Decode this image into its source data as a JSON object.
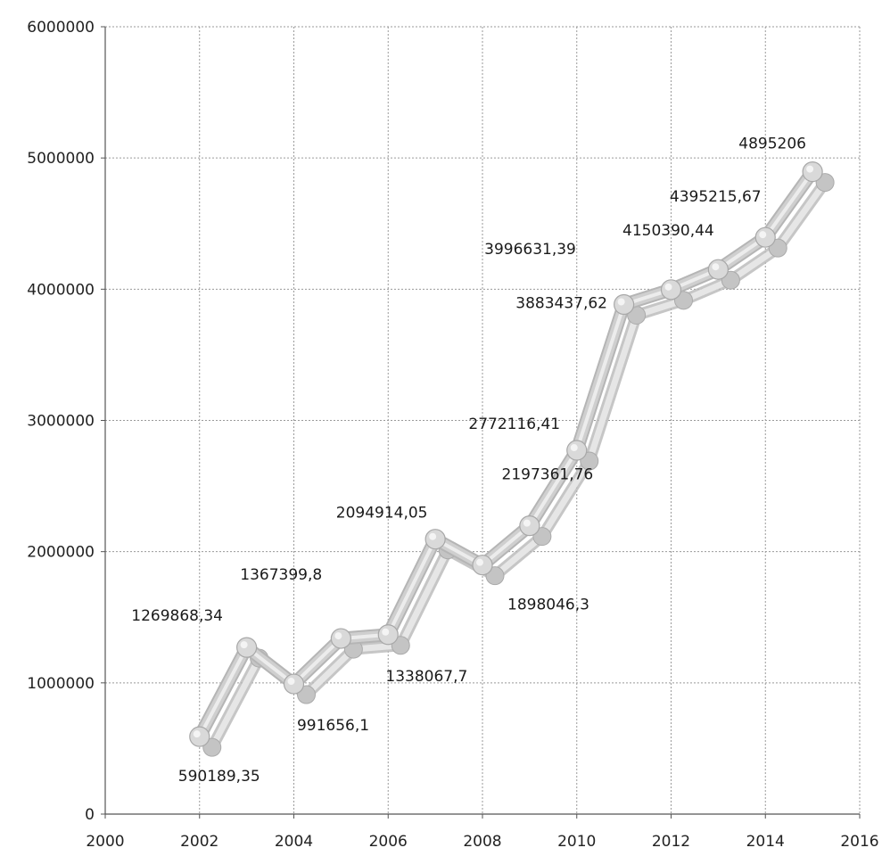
{
  "chart_data": {
    "type": "line",
    "title": "",
    "xlabel": "",
    "ylabel": "",
    "xlim": [
      2000,
      2016
    ],
    "ylim": [
      0,
      6000000
    ],
    "x_ticks": [
      2000,
      2002,
      2004,
      2006,
      2008,
      2010,
      2012,
      2014,
      2016
    ],
    "y_ticks": [
      0,
      1000000,
      2000000,
      3000000,
      4000000,
      5000000,
      6000000
    ],
    "grid": true,
    "legend": "none",
    "style": "3D tube line with spherical markers",
    "colors": {
      "line": "#cfcfcf",
      "marker": "#d9d9d9",
      "shadow": "#b8b8b8",
      "grid": "#9a9a9a"
    },
    "series": [
      {
        "x": [
          2002,
          2003,
          2004,
          2005,
          2006,
          2007,
          2008,
          2009,
          2010,
          2011,
          2012,
          2013,
          2014,
          2015
        ],
        "values": [
          590189.35,
          1269868.34,
          991656.1,
          1338067.7,
          1367399.8,
          2094914.05,
          1898046.3,
          2197361.76,
          2772116.41,
          3883437.62,
          3996631.39,
          4150390.44,
          4395215.67,
          4895206
        ],
        "labels": [
          "590189,35",
          "1269868,34",
          "991656,1",
          "1338067,7",
          "1367399,8",
          "2094914,05",
          "1898046,3",
          "2197361,76",
          "2772116,41",
          "3883437,62",
          "3996631,39",
          "4150390,44",
          "4395215,67",
          "4895206"
        ]
      }
    ]
  }
}
